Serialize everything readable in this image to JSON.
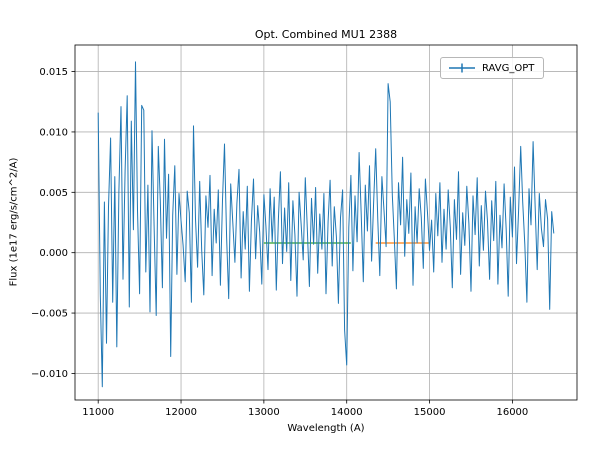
{
  "chart_data": {
    "type": "line",
    "title": "Opt. Combined MU1 2388",
    "xlabel": "Wavelength (A)",
    "ylabel": "Flux (1e17 erg/s/cm^2/A)",
    "legend": [
      "RAVG_OPT"
    ],
    "line_color": "#1f77b4",
    "grid": true,
    "legend_position": "upper right",
    "xlim": [
      10720,
      16780
    ],
    "ylim": [
      -0.0122,
      0.0172
    ],
    "x_ticks": [
      11000,
      12000,
      13000,
      14000,
      15000,
      16000
    ],
    "x_tick_labels": [
      "11000",
      "12000",
      "13000",
      "14000",
      "15000",
      "16000"
    ],
    "y_ticks": [
      -0.01,
      -0.005,
      0.0,
      0.005,
      0.01,
      0.015
    ],
    "y_tick_labels": [
      "−0.010",
      "−0.005",
      "0.000",
      "0.005",
      "0.010",
      "0.015"
    ],
    "segments": [
      {
        "name": "green-segment",
        "x1": 13000,
        "x2": 14050,
        "y": 0.0008,
        "color": "#2ca02c"
      },
      {
        "name": "orange-segment",
        "x1": 14350,
        "x2": 15000,
        "y": 0.0008,
        "color": "#ff7f0e"
      }
    ],
    "x_start": 11000,
    "x_step": 25,
    "values": [
      0.0116,
      -0.0035,
      -0.0111,
      0.0042,
      -0.0075,
      0.0038,
      0.0095,
      -0.0041,
      0.0063,
      -0.0078,
      0.0051,
      0.0121,
      -0.0022,
      0.0068,
      0.013,
      -0.0045,
      0.0109,
      0.0019,
      0.0158,
      0.0035,
      -0.0034,
      0.0122,
      0.0118,
      -0.0016,
      0.0056,
      -0.0049,
      0.0101,
      0.0022,
      -0.0052,
      0.0088,
      0.0043,
      -0.0029,
      0.0094,
      0.0012,
      0.0065,
      -0.0086,
      0.0031,
      0.0072,
      -0.0018,
      0.0049,
      0.0027,
      0.0006,
      -0.0024,
      0.0051,
      0.0033,
      -0.0041,
      0.0105,
      0.0028,
      -0.0012,
      0.0059,
      0.0002,
      -0.0035,
      0.0047,
      0.0021,
      0.0064,
      -0.0019,
      0.0036,
      0.0008,
      0.0052,
      -0.0027,
      0.0044,
      0.009,
      0.0013,
      -0.0038,
      0.0057,
      0.0025,
      -0.0008,
      0.0041,
      0.0069,
      -0.0021,
      0.0034,
      0.0003,
      0.0055,
      -0.0032,
      0.0026,
      0.0061,
      -0.0005,
      0.0039,
      0.0017,
      -0.0026,
      0.0048,
      0.0022,
      -0.0014,
      0.0053,
      0.0009,
      0.0046,
      -0.0031,
      0.0028,
      0.0067,
      -0.0009,
      0.0037,
      0.0001,
      0.0058,
      -0.0023,
      0.0043,
      0.0015,
      -0.0036,
      0.005,
      0.0024,
      -0.0006,
      0.0062,
      0.0018,
      -0.0028,
      0.0045,
      0.0007,
      0.0054,
      -0.0017,
      0.0032,
      0.0003,
      0.0049,
      -0.0034,
      0.0026,
      0.006,
      -0.0011,
      0.0038,
      0.0013,
      -0.0042,
      0.0029,
      0.0052,
      -0.0064,
      -0.0093,
      0.0021,
      0.0064,
      -0.0015,
      0.0047,
      0.0009,
      0.0083,
      0.0032,
      -0.0024,
      0.0056,
      0.0018,
      0.0072,
      -0.0007,
      0.0041,
      0.0086,
      0.0027,
      -0.0019,
      0.0063,
      0.0035,
      0.0005,
      0.014,
      0.0125,
      0.0048,
      0.0012,
      -0.003,
      0.0058,
      0.0023,
      0.0079,
      -0.0003,
      0.0044,
      0.0016,
      0.0066,
      -0.0027,
      0.0038,
      0.0008,
      0.0053,
      0.0029,
      -0.0013,
      0.0061,
      0.0033,
      0.0002,
      0.0027,
      -0.0016,
      0.0049,
      0.0014,
      0.0058,
      -0.0008,
      0.0036,
      0.0003,
      0.0052,
      0.0021,
      -0.0029,
      0.0044,
      0.0011,
      0.0067,
      -0.0018,
      0.0033,
      0.0006,
      0.0055,
      0.0024,
      -0.0032,
      0.0047,
      0.0015,
      0.0062,
      -0.0011,
      0.0039,
      0.0002,
      0.0051,
      0.0026,
      -0.0022,
      0.0043,
      0.001,
      0.0059,
      -0.0026,
      0.0031,
      0.0004,
      0.0057,
      0.0019,
      -0.0036,
      0.0046,
      0.0013,
      0.0071,
      -0.0009,
      0.0035,
      0.0088,
      0.0042,
      0.0007,
      -0.0041,
      0.0053,
      0.0023,
      0.0092,
      0.0037,
      -0.0014,
      0.0049,
      0.002,
      0.0005,
      0.0044,
      0.0028,
      -0.0047,
      0.0034,
      0.0016
    ]
  }
}
